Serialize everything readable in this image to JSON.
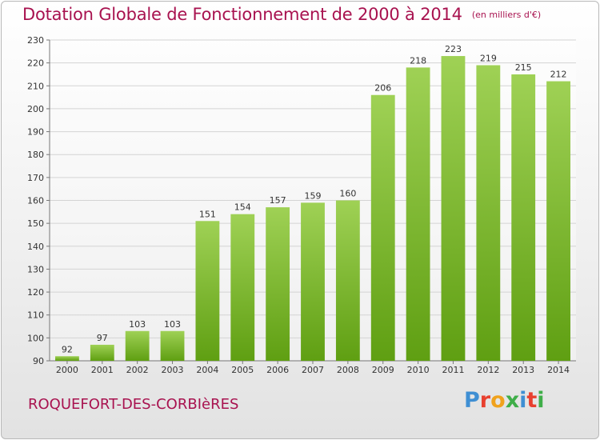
{
  "header": {
    "title": "Dotation Globale de Fonctionnement de 2000 à 2014",
    "unit": "(en milliers d'€)"
  },
  "footer": {
    "commune": "ROQUEFORT-DES-CORBIèRES",
    "brand_letters": [
      "P",
      "r",
      "o",
      "x",
      "i",
      "t",
      "i"
    ],
    "brand_colors": [
      "#3f8fd3",
      "#e8402f",
      "#f0a21d",
      "#3fae49",
      "#3f8fd3",
      "#e8402f",
      "#3fae49"
    ]
  },
  "colors": {
    "title": "#a8124f",
    "bar_light": "#9fd155",
    "bar_dark": "#5f9f12"
  },
  "chart_data": {
    "type": "bar",
    "title": "Dotation Globale de Fonctionnement de 2000 à 2014",
    "categories": [
      "2000",
      "2001",
      "2002",
      "2003",
      "2004",
      "2005",
      "2006",
      "2007",
      "2008",
      "2009",
      "2010",
      "2011",
      "2012",
      "2013",
      "2014"
    ],
    "values": [
      92,
      97,
      103,
      103,
      151,
      154,
      157,
      159,
      160,
      206,
      218,
      223,
      219,
      215,
      212
    ],
    "ylim": [
      90,
      230
    ],
    "yticks": [
      90,
      100,
      110,
      120,
      130,
      140,
      150,
      160,
      170,
      180,
      190,
      200,
      210,
      220,
      230
    ],
    "grid": true,
    "data_labels": true
  }
}
